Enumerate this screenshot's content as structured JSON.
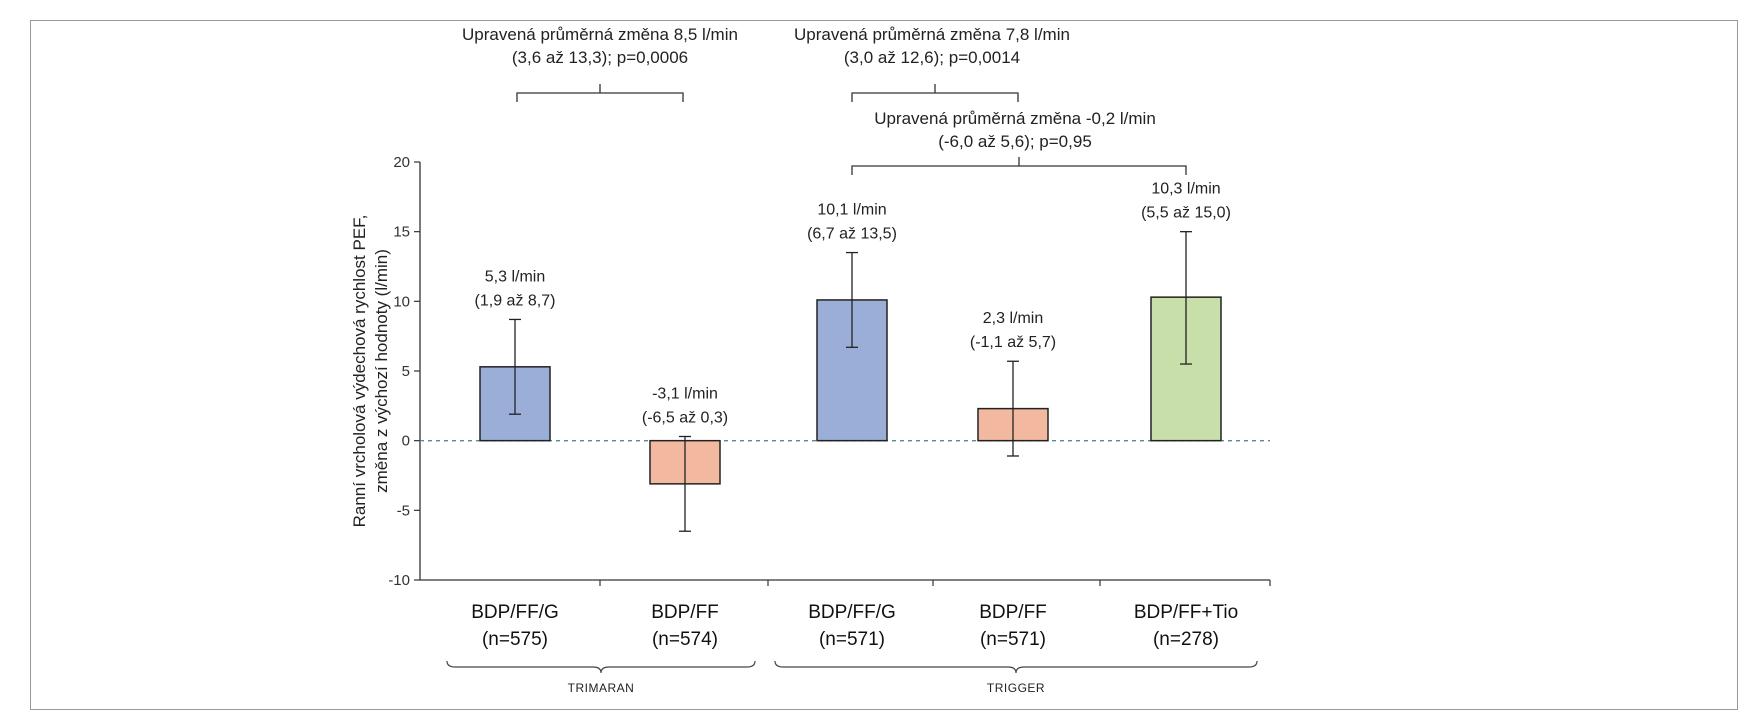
{
  "chart_data": {
    "type": "bar",
    "title": "",
    "ylabel": [
      "Ranní vrcholová výdechová rychlost PEF,",
      "změna z výchozí hodnoty (l/min)"
    ],
    "xlabel": "",
    "ylim": [
      -10,
      20
    ],
    "yticks": [
      -10,
      -5,
      0,
      5,
      10,
      15,
      20
    ],
    "yticks_labels": [
      "-10",
      "-5",
      "0",
      "5",
      "10",
      "15",
      "20"
    ],
    "grid": false,
    "reference_line": 0,
    "bars": [
      {
        "category": "BDP/FF/G",
        "n_label": "(n=575)",
        "value": 5.3,
        "ci": [
          1.9,
          8.7
        ],
        "label_value": "5,3 l/min",
        "label_ci": "(1,9 až 8,7)",
        "color": "#9aaed8"
      },
      {
        "category": "BDP/FF",
        "n_label": "(n=574)",
        "value": -3.1,
        "ci": [
          -6.5,
          0.3
        ],
        "label_value": "-3,1 l/min",
        "label_ci": "(-6,5 až 0,3)",
        "color": "#f2b9a0"
      },
      {
        "category": "BDP/FF/G",
        "n_label": "(n=571)",
        "value": 10.1,
        "ci": [
          6.7,
          13.5
        ],
        "label_value": "10,1 l/min",
        "label_ci": "(6,7 až 13,5)",
        "color": "#9aaed8"
      },
      {
        "category": "BDP/FF",
        "n_label": "(n=571)",
        "value": 2.3,
        "ci": [
          -1.1,
          5.7
        ],
        "label_value": "2,3 l/min",
        "label_ci": "(-1,1 až 5,7)",
        "color": "#f2b9a0"
      },
      {
        "category": "BDP/FF+Tio",
        "n_label": "(n=278)",
        "value": 10.3,
        "ci": [
          5.5,
          15.0
        ],
        "label_value": "10,3 l/min",
        "label_ci": "(5,5 až 15,0)",
        "color": "#c9dfa9"
      }
    ],
    "groups": [
      {
        "name": "TRIMARAN",
        "bar_indices": [
          0,
          1
        ]
      },
      {
        "name": "TRIGGER",
        "bar_indices": [
          2,
          3,
          4
        ]
      }
    ],
    "comparisons": [
      {
        "from": 0,
        "to": 1,
        "line1": "Upravená průměrná změna 8,5 l/min",
        "line2": "(3,6 až 13,3); p=0,0006"
      },
      {
        "from": 2,
        "to": 3,
        "line1": "Upravená průměrná změna 7,8 l/min",
        "line2": "(3,0 až 12,6); p=0,0014"
      },
      {
        "from": 2,
        "to": 4,
        "line1": "Upravená průměrná změna -0,2 l/min",
        "line2": "(-6,0 až 5,6); p=0,95"
      }
    ]
  }
}
